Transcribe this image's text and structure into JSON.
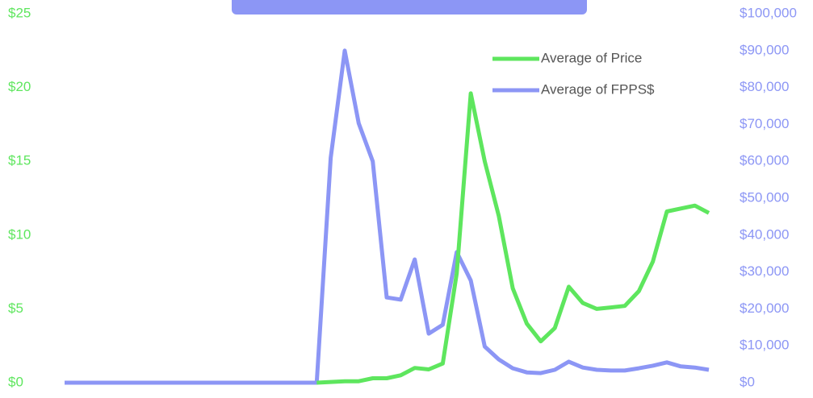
{
  "chart_data": {
    "type": "line",
    "categories": [
      null,
      null,
      null,
      null,
      null,
      null,
      null,
      null,
      null,
      null,
      null,
      null,
      null,
      null,
      null,
      null,
      null,
      null,
      null,
      null,
      null,
      null,
      null,
      null,
      null,
      null,
      null,
      null,
      null,
      null,
      null,
      null,
      null,
      null,
      null,
      null,
      null,
      null,
      null,
      null,
      null,
      null,
      null,
      null,
      null,
      null,
      null
    ],
    "series": [
      {
        "name": "Average of Price",
        "color": "#5ee65e",
        "axis": "y",
        "values": [
          null,
          null,
          null,
          null,
          null,
          null,
          null,
          null,
          null,
          null,
          null,
          null,
          null,
          null,
          null,
          null,
          null,
          null,
          0,
          0.05,
          0.1,
          0.1,
          0.3,
          0.3,
          0.5,
          1.0,
          0.9,
          1.3,
          7.4,
          19.6,
          15.0,
          11.3,
          6.4,
          4.0,
          2.8,
          3.7,
          6.5,
          5.4,
          5.0,
          5.1,
          5.2,
          6.2,
          8.2,
          11.6,
          11.8,
          12.0,
          11.5
        ]
      },
      {
        "name": "Average of FPPS$",
        "color": "#8c96f5",
        "axis": "y2",
        "values": [
          0,
          0,
          0,
          0,
          0,
          0,
          0,
          0,
          0,
          0,
          0,
          0,
          0,
          0,
          0,
          0,
          0,
          0,
          0,
          60900,
          90000,
          70300,
          60000,
          23100,
          22500,
          33400,
          13300,
          15700,
          35400,
          27700,
          9800,
          6300,
          3900,
          2800,
          2600,
          3500,
          5700,
          4100,
          3500,
          3300,
          3300,
          3900,
          4600,
          5500,
          4400,
          4100,
          3500
        ]
      }
    ],
    "ylim": [
      0,
      25
    ],
    "yticks": [
      {
        "value": 0,
        "label": "$0"
      },
      {
        "value": 5,
        "label": "$5"
      },
      {
        "value": 10,
        "label": "$10"
      },
      {
        "value": 15,
        "label": "$15"
      },
      {
        "value": 20,
        "label": "$20"
      },
      {
        "value": 25,
        "label": "$25"
      }
    ],
    "y2lim": [
      0,
      100000
    ],
    "y2ticks": [
      {
        "value": 0,
        "label": "$0"
      },
      {
        "value": 10000,
        "label": "$10,000"
      },
      {
        "value": 20000,
        "label": "$20,000"
      },
      {
        "value": 30000,
        "label": "$30,000"
      },
      {
        "value": 40000,
        "label": "$40,000"
      },
      {
        "value": 50000,
        "label": "$50,000"
      },
      {
        "value": 60000,
        "label": "$60,000"
      },
      {
        "value": 70000,
        "label": "$70,000"
      },
      {
        "value": 80000,
        "label": "$80,000"
      },
      {
        "value": 90000,
        "label": "$90,000"
      },
      {
        "value": 100000,
        "label": "$100,000"
      }
    ],
    "legend": "top-right"
  }
}
